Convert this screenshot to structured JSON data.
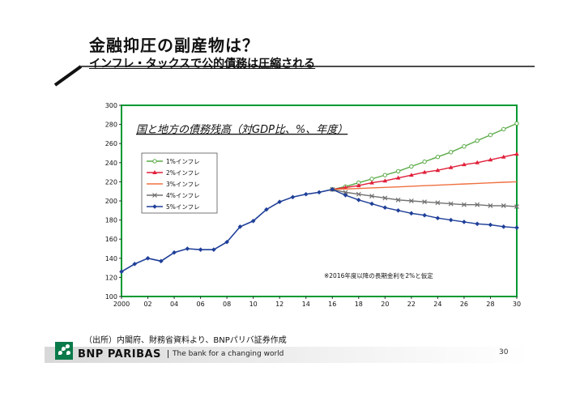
{
  "slide": {
    "title": "金融抑圧の副産物は？",
    "subtitle": "インフレ・タックスで公的債務は圧縮される",
    "source": "（出所）内閣府、財務省資料より、BNPパリバ証券作成",
    "page_number": "30",
    "bank_name": "BNP PARIBAS",
    "tagline": "The bank for a changing world"
  },
  "colors": {
    "green_brand": "#0a7a4a",
    "chart_border": "#009933"
  },
  "chart_data": {
    "type": "line",
    "title": "国と地方の債務残高（対GDP比、%、年度）",
    "annotation": "※2016年度以降の長期金利を2%と仮定",
    "x_tick_labels": [
      "2000",
      "02",
      "04",
      "06",
      "08",
      "10",
      "12",
      "14",
      "16",
      "18",
      "20",
      "22",
      "24",
      "26",
      "28",
      "30"
    ],
    "xlim": [
      2000,
      2030
    ],
    "ylim": [
      100,
      300
    ],
    "y_ticks": [
      100,
      120,
      140,
      160,
      180,
      200,
      220,
      240,
      260,
      280,
      300
    ],
    "legend_position": "upper-left",
    "historical": {
      "x": [
        2000,
        2001,
        2002,
        2003,
        2004,
        2005,
        2006,
        2007,
        2008,
        2009,
        2010,
        2011,
        2012,
        2013,
        2014,
        2015,
        2016
      ],
      "values": [
        126,
        134,
        140,
        137,
        146,
        150,
        149,
        149,
        157,
        173,
        179,
        191,
        199,
        204,
        207,
        209,
        212
      ]
    },
    "series": [
      {
        "name": "1%インフレ",
        "color": "#5aaa46",
        "marker": "open-circle",
        "x": [
          2016,
          2017,
          2018,
          2019,
          2020,
          2021,
          2022,
          2023,
          2024,
          2025,
          2026,
          2027,
          2028,
          2029,
          2030
        ],
        "values": [
          212,
          215,
          219,
          223,
          227,
          231,
          236,
          241,
          246,
          251,
          257,
          263,
          269,
          275,
          281
        ]
      },
      {
        "name": "2%インフレ",
        "color": "#e0203a",
        "marker": "triangle",
        "x": [
          2016,
          2017,
          2018,
          2019,
          2020,
          2021,
          2022,
          2023,
          2024,
          2025,
          2026,
          2027,
          2028,
          2029,
          2030
        ],
        "values": [
          212,
          214,
          216,
          219,
          221,
          224,
          227,
          230,
          232,
          235,
          238,
          240,
          243,
          246,
          249
        ]
      },
      {
        "name": "3%インフレ",
        "color": "#f07040",
        "marker": "dash",
        "x": [
          2016,
          2017,
          2018,
          2019,
          2020,
          2021,
          2022,
          2023,
          2024,
          2025,
          2026,
          2027,
          2028,
          2029,
          2030
        ],
        "values": [
          212,
          212.5,
          213,
          213.6,
          214.1,
          214.7,
          215.3,
          215.9,
          216.5,
          217.1,
          217.7,
          218.3,
          218.9,
          219.5,
          220
        ]
      },
      {
        "name": "4%インフレ",
        "color": "#707070",
        "marker": "x",
        "x": [
          2016,
          2017,
          2018,
          2019,
          2020,
          2021,
          2022,
          2023,
          2024,
          2025,
          2026,
          2027,
          2028,
          2029,
          2030
        ],
        "values": [
          212,
          209,
          207,
          205,
          203,
          201,
          200,
          199,
          198,
          197,
          196,
          196,
          195,
          195,
          194
        ]
      },
      {
        "name": "5%インフレ",
        "color": "#1f3f99",
        "marker": "diamond",
        "x": [
          2016,
          2017,
          2018,
          2019,
          2020,
          2021,
          2022,
          2023,
          2024,
          2025,
          2026,
          2027,
          2028,
          2029,
          2030
        ],
        "values": [
          212,
          206,
          201,
          197,
          193,
          190,
          187,
          185,
          182,
          180,
          178,
          176,
          175,
          173,
          172
        ]
      }
    ]
  }
}
